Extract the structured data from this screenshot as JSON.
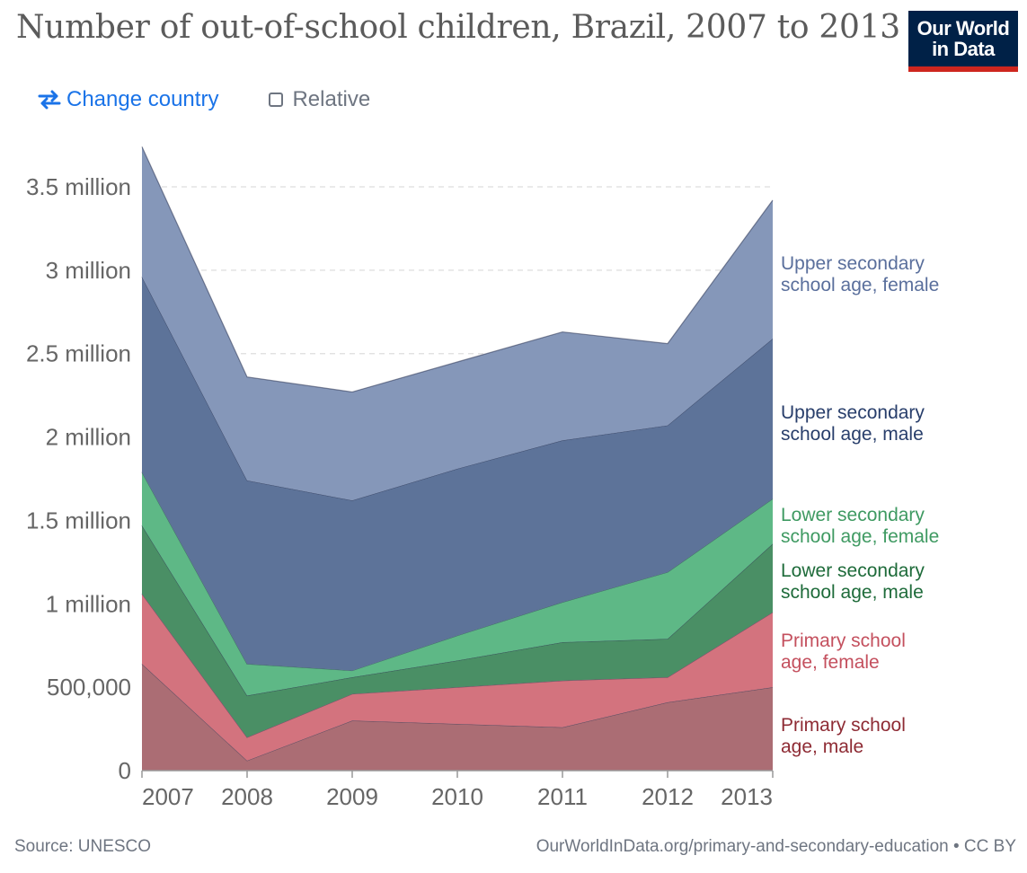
{
  "header": {
    "title": "Number of out-of-school children, Brazil, 2007 to 2013",
    "logo_line1": "Our World",
    "logo_line2": "in Data"
  },
  "controls": {
    "change_country_label": "Change country",
    "relative_label": "Relative"
  },
  "footer": {
    "source": "Source: UNESCO",
    "url": "OurWorldInData.org/primary-and-secondary-education • CC BY"
  },
  "colors": {
    "upper_secondary_female": "#8597b9",
    "upper_secondary_male": "#5d7399",
    "lower_secondary_female": "#5eb886",
    "lower_secondary_male": "#4a8f65",
    "primary_female": "#d3737e",
    "primary_male": "#ab6d74"
  },
  "chart_data": {
    "type": "area",
    "stacked": true,
    "x": [
      2007,
      2008,
      2009,
      2010,
      2011,
      2012,
      2013
    ],
    "ylim": [
      0,
      3500000
    ],
    "yticks": [
      0,
      500000,
      1000000,
      1500000,
      2000000,
      2500000,
      3000000,
      3500000
    ],
    "ytick_labels": [
      "0",
      "500,000",
      "1 million",
      "1.5 million",
      "2 million",
      "2.5 million",
      "3 million",
      "3.5 million"
    ],
    "xtick_labels": [
      "2007",
      "2008",
      "2009",
      "2010",
      "2011",
      "2012",
      "2013"
    ],
    "grid": true,
    "series": [
      {
        "name": "Primary school age, male",
        "label_lines": [
          "Primary school",
          "age, male"
        ],
        "color": "#ab6d74",
        "label_color": "#8e2b34",
        "values": [
          640000,
          60000,
          300000,
          280000,
          260000,
          410000,
          500000
        ]
      },
      {
        "name": "Primary school age, female",
        "label_lines": [
          "Primary school",
          "age, female"
        ],
        "color": "#d3737e",
        "label_color": "#c4505e",
        "values": [
          420000,
          140000,
          160000,
          220000,
          280000,
          150000,
          450000
        ]
      },
      {
        "name": "Lower secondary school age, male",
        "label_lines": [
          "Lower secondary",
          "school age, male"
        ],
        "color": "#4a8f65",
        "label_color": "#1e6b3a",
        "values": [
          410000,
          250000,
          100000,
          160000,
          230000,
          230000,
          410000
        ]
      },
      {
        "name": "Lower secondary school age, female",
        "label_lines": [
          "Lower secondary",
          "school age, female"
        ],
        "color": "#5eb886",
        "label_color": "#3f9a62",
        "values": [
          320000,
          190000,
          40000,
          150000,
          240000,
          400000,
          270000
        ]
      },
      {
        "name": "Upper secondary school age, male",
        "label_lines": [
          "Upper secondary",
          "school age, male"
        ],
        "color": "#5d7399",
        "label_color": "#283e6b",
        "values": [
          1170000,
          1100000,
          1020000,
          1000000,
          970000,
          880000,
          960000
        ]
      },
      {
        "name": "Upper secondary school age, female",
        "label_lines": [
          "Upper secondary",
          "school age, female"
        ],
        "color": "#8597b9",
        "label_color": "#5a6f9c",
        "values": [
          780000,
          620000,
          650000,
          640000,
          650000,
          490000,
          830000
        ]
      }
    ]
  }
}
